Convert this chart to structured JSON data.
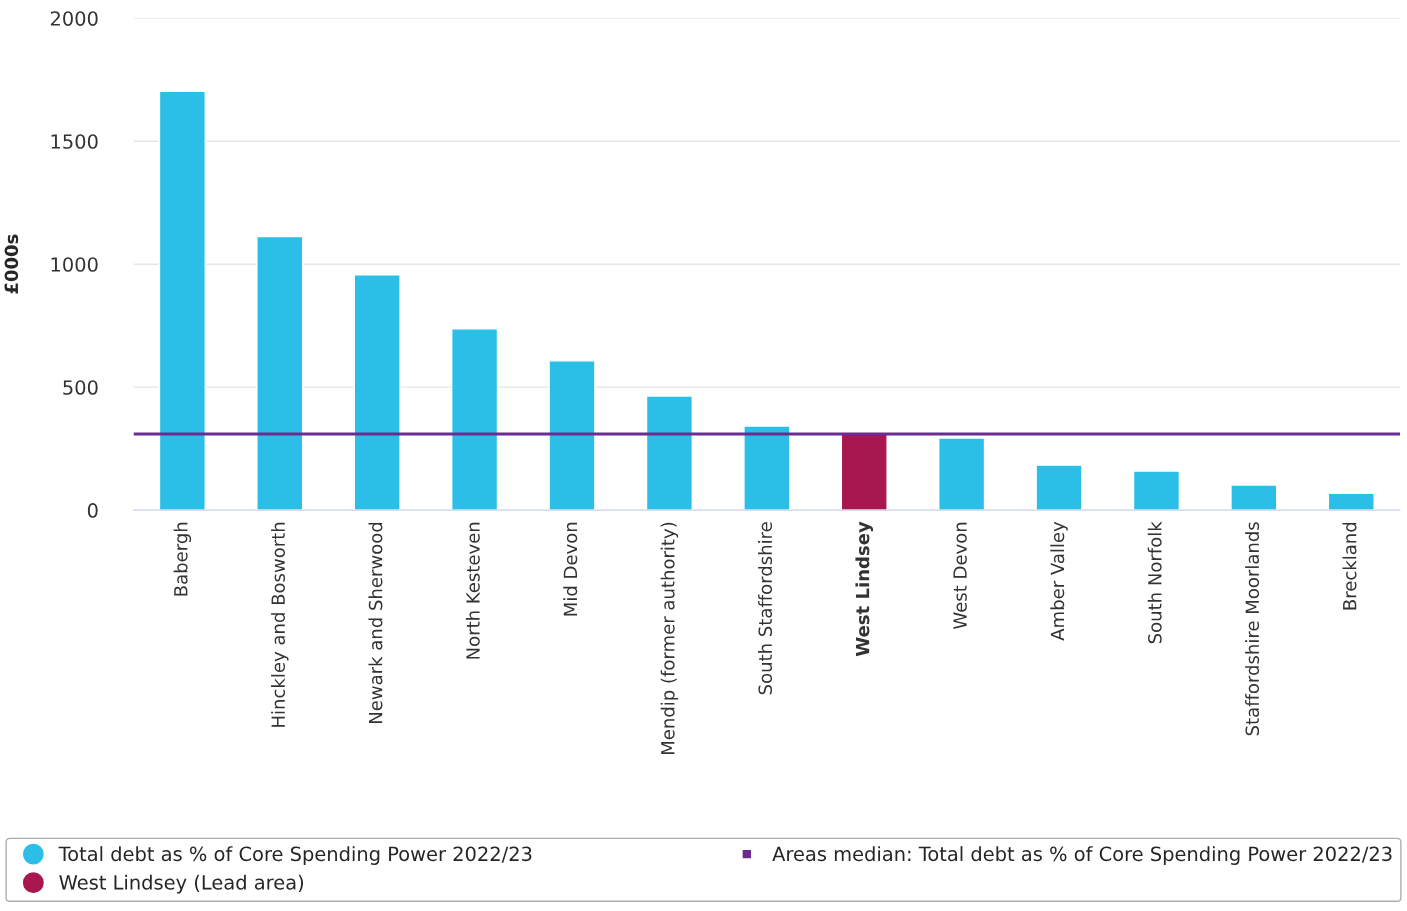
{
  "chart_data": {
    "type": "bar",
    "ylabel": "£000s",
    "categories": [
      "Babergh",
      "Hinckley and Bosworth",
      "Newark and Sherwood",
      "North Kesteven",
      "Mid Devon",
      "Mendip (former authority)",
      "South Staffordshire",
      "West Lindsey",
      "West Devon",
      "Amber Valley",
      "South Norfolk",
      "Staffordshire Moorlands",
      "Breckland"
    ],
    "series": [
      {
        "name": "Total debt as % of Core Spending Power 2022/23",
        "color": "#2bbfe8",
        "values": [
          1703,
          1112,
          957,
          737,
          607,
          464,
          342,
          null,
          293,
          183,
          159,
          102,
          69
        ]
      },
      {
        "name": "West Lindsey (Lead area)",
        "color": "#a8174f",
        "values": [
          null,
          null,
          null,
          null,
          null,
          null,
          null,
          310,
          null,
          null,
          null,
          null,
          null
        ]
      }
    ],
    "ref_lines": [
      {
        "axis": "y",
        "value": 310,
        "label": "Areas median: Total debt as % of Core Spending Power 2022/23",
        "color": "#6a2c91"
      }
    ],
    "ylim": [
      0,
      2000
    ],
    "yticks": [
      0,
      500,
      1000,
      1500,
      2000
    ],
    "grid": "y",
    "legend": "bottom"
  }
}
